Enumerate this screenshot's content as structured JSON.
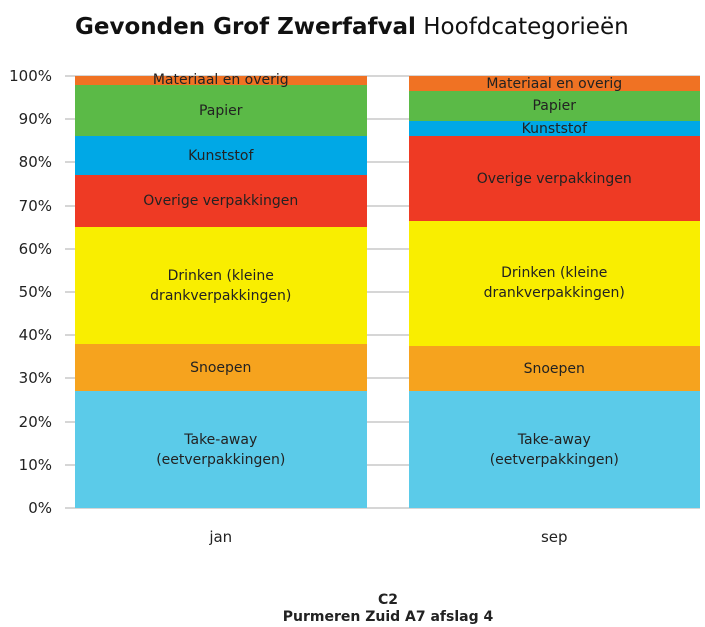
{
  "chart_data": {
    "type": "stacked_bar",
    "title": "Gevonden Grof Zwerfafval",
    "subtitle": "Hoofdcategorieën",
    "categories": [
      "jan",
      "sep"
    ],
    "series": [
      {
        "name": "Take-away (eetverpakkingen)",
        "color": "#5bcbe9",
        "values": [
          27,
          27
        ]
      },
      {
        "name": "Snoepen",
        "color": "#f6a31e",
        "values": [
          11,
          10.5
        ]
      },
      {
        "name": "Drinken (kleine drankverpakkingen)",
        "color": "#f9ee00",
        "values": [
          27,
          29
        ]
      },
      {
        "name": "Overige verpakkingen",
        "color": "#ee3a24",
        "values": [
          12,
          19.5
        ]
      },
      {
        "name": "Kunststof",
        "color": "#00a8e6",
        "values": [
          9,
          3.5
        ]
      },
      {
        "name": "Papier",
        "color": "#5bba47",
        "values": [
          12,
          7
        ]
      },
      {
        "name": "Materiaal en overig",
        "color": "#f07223",
        "values": [
          2,
          3.5
        ]
      }
    ],
    "ylim": [
      0,
      100
    ],
    "yticks": [
      {
        "value": 0,
        "label": "0%"
      },
      {
        "value": 10,
        "label": "10%"
      },
      {
        "value": 20,
        "label": "20%"
      },
      {
        "value": 30,
        "label": "30%"
      },
      {
        "value": 40,
        "label": "40%"
      },
      {
        "value": 50,
        "label": "50%"
      },
      {
        "value": 60,
        "label": "60%"
      },
      {
        "value": 70,
        "label": "70%"
      },
      {
        "value": 80,
        "label": "80%"
      },
      {
        "value": 90,
        "label": "90%"
      },
      {
        "value": 100,
        "label": "100%"
      }
    ],
    "grid": true,
    "footer": [
      "C2",
      "Purmeren Zuid A7 afslag 4"
    ]
  }
}
